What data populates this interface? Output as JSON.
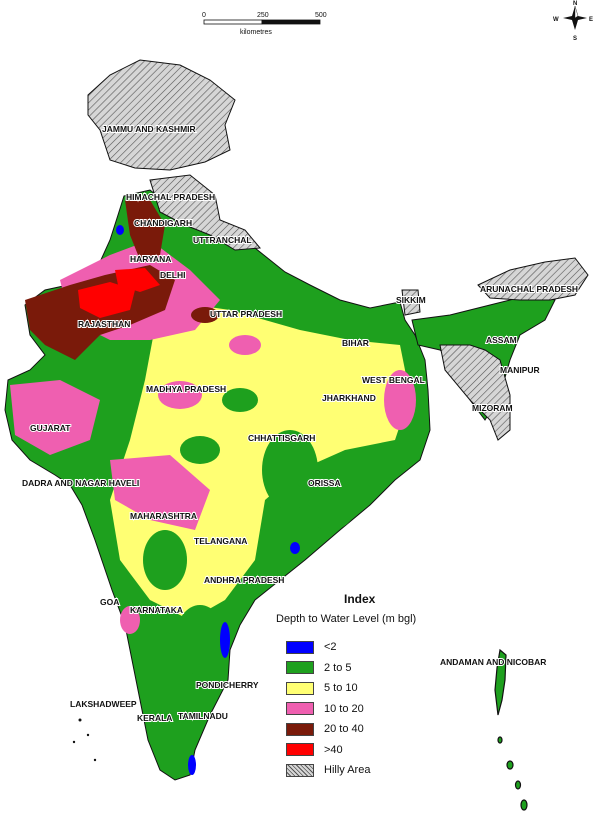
{
  "scale": {
    "ticks": [
      "0",
      "250",
      "500"
    ],
    "unit": "kilometres"
  },
  "compass": {
    "n": "N",
    "s": "S",
    "w": "W",
    "e": "E"
  },
  "states": {
    "jk": "JAMMU AND KASHMIR",
    "hp": "HIMACHAL PRADESH",
    "ch": "CHANDIGARH",
    "ua": "UTTRANCHAL",
    "hr": "HARYANA",
    "dl": "DELHI",
    "rj": "RAJASTHAN",
    "up": "UTTAR PRADESH",
    "sk": "SIKKIM",
    "ar": "ARUNACHAL PRADESH",
    "as": "ASSAM",
    "br": "BIHAR",
    "mn": "MANIPUR",
    "wb": "WEST BENGAL",
    "jh": "JHARKHAND",
    "mz": "MIZORAM",
    "mp": "MADHYA PRADESH",
    "gj": "GUJARAT",
    "cg": "CHHATTISGARH",
    "or": "ORISSA",
    "dn": "DADRA AND NAGAR HAVELI",
    "mh": "MAHARASHTRA",
    "tg": "TELANGANA",
    "apr": "ANDHRA PRADESH",
    "ga": "GOA",
    "ka": "KARNATAKA",
    "an": "ANDAMAN AND NICOBAR",
    "py": "PONDICHERRY",
    "ld": "LAKSHADWEEP",
    "kl": "KERALA",
    "tn": "TAMILNADU"
  },
  "legend": {
    "title": "Index",
    "subtitle": "Depth to Water Level (m bgl)",
    "items": [
      {
        "label": "<2",
        "color": "#0000ff"
      },
      {
        "label": "2 to 5",
        "color": "#1ea01e"
      },
      {
        "label": "5 to 10",
        "color": "#ffff73"
      },
      {
        "label": "10 to 20",
        "color": "#ef5fb0"
      },
      {
        "label": "20 to 40",
        "color": "#7a1a0a"
      },
      {
        "label": ">40",
        "color": "#ff0000"
      },
      {
        "label": "Hilly Area",
        "color": "hatch"
      }
    ]
  }
}
